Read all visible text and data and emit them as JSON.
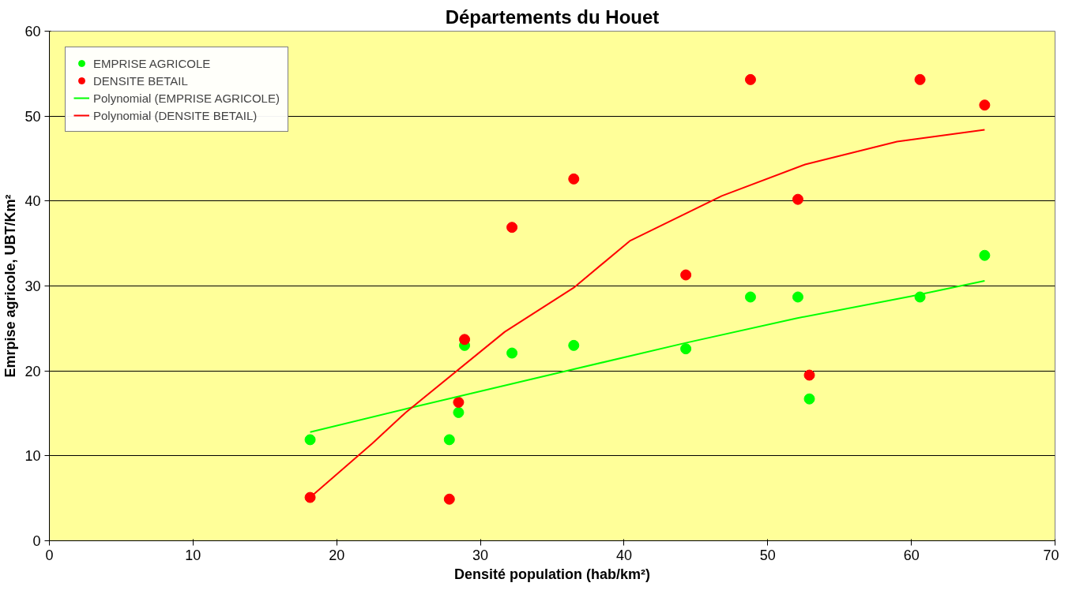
{
  "chart_data": {
    "type": "scatter",
    "title": "Départements du Houet",
    "xlabel": "Densité population (hab/km²)",
    "ylabel": "Emrpise agricole, UBT/Km²",
    "xlim": [
      0,
      70
    ],
    "xticks": [
      0,
      10,
      20,
      30,
      40,
      50,
      60,
      70
    ],
    "ylim": [
      0,
      60
    ],
    "yticks": [
      0,
      10,
      20,
      30,
      40,
      50,
      60
    ],
    "grid": "y",
    "legend": "top left",
    "series": [
      {
        "name": "EMPRISE AGRICOLE",
        "marker": "circle",
        "color": "#00ff00",
        "x": [
          18.15,
          27.84,
          28.48,
          28.9,
          32.2,
          36.5,
          44.3,
          48.8,
          52.1,
          52.9,
          60.6,
          65.1
        ],
        "values": [
          11.9,
          11.9,
          15.1,
          23.0,
          22.1,
          23.0,
          22.6,
          28.7,
          28.7,
          16.7,
          28.7,
          33.6
        ]
      },
      {
        "name": "DENSITE BETAIL",
        "marker": "circle",
        "color": "#ff0000",
        "x": [
          18.15,
          27.84,
          28.48,
          28.9,
          32.2,
          36.5,
          44.3,
          48.8,
          52.1,
          52.9,
          60.6,
          65.1
        ],
        "values": [
          5.1,
          4.9,
          16.3,
          23.7,
          36.9,
          42.6,
          31.3,
          54.3,
          40.2,
          19.5,
          54.3,
          51.3
        ]
      },
      {
        "name": "Polynomial (EMPRISE AGRICOLE)",
        "type": "line",
        "marker": "none",
        "color": "#00ff00",
        "x": [
          18.15,
          25,
          30,
          36.5,
          44.3,
          52,
          60,
          65.1
        ],
        "values": [
          12.8,
          15.6,
          17.6,
          20.2,
          23.3,
          26.2,
          28.8,
          30.6
        ]
      },
      {
        "name": "Polynomial (DENSITE BETAIL)",
        "type": "line",
        "marker": "none",
        "color": "#ff0000",
        "x": [
          18.15,
          22.5,
          24.8,
          31.7,
          36.5,
          40.4,
          46.8,
          52.6,
          59,
          65.1
        ],
        "values": [
          5.1,
          11.5,
          15.1,
          24.6,
          29.8,
          35.3,
          40.6,
          44.3,
          47,
          48.4
        ]
      }
    ]
  }
}
